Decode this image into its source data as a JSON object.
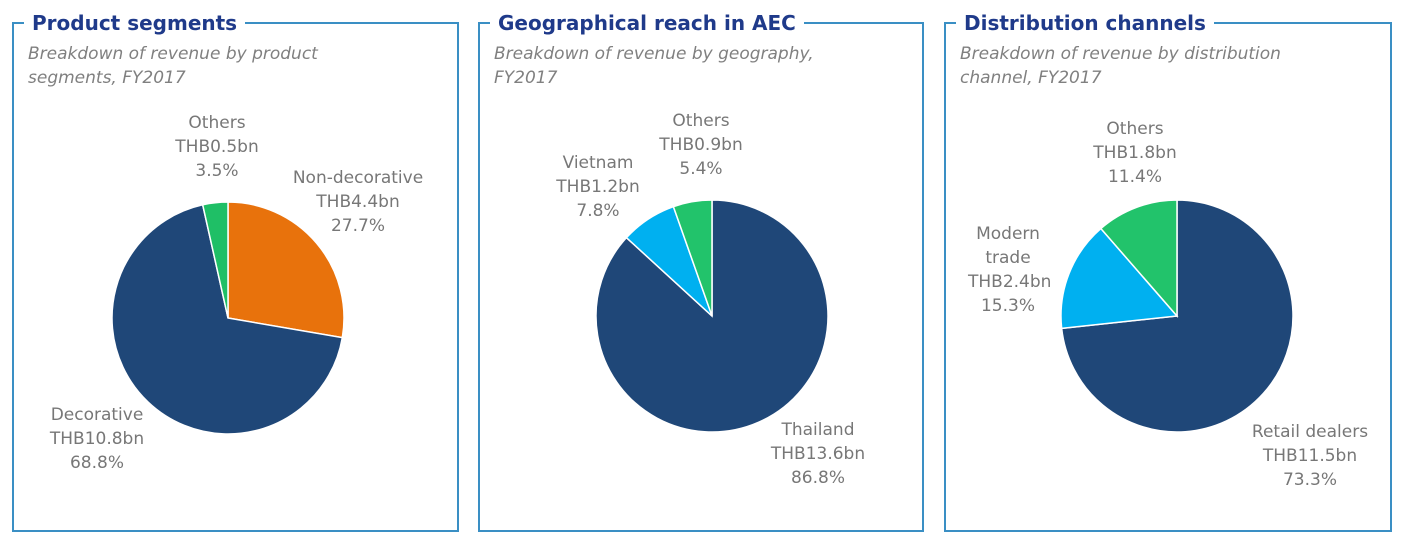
{
  "chart_data": [
    {
      "type": "pie",
      "title": "Product segments",
      "subtitle": "Breakdown of revenue by product segments, FY2017",
      "categories": [
        "Non-decorative",
        "Decorative",
        "Others"
      ],
      "values": [
        27.7,
        68.8,
        3.5
      ],
      "value_labels": [
        "27.7%",
        "68.8%",
        "3.5%"
      ],
      "amounts": [
        4.4,
        10.8,
        0.5
      ],
      "amount_labels": [
        "THB4.4bn",
        "THB10.8bn",
        "THB0.5bn"
      ],
      "colors": [
        "#e8720c",
        "#1f4778",
        "#1fbf66"
      ]
    },
    {
      "type": "pie",
      "title": "Geographical reach in AEC",
      "subtitle": "Breakdown of revenue by geography, FY2017",
      "categories": [
        "Thailand",
        "Vietnam",
        "Others"
      ],
      "values": [
        86.8,
        7.8,
        5.4
      ],
      "value_labels": [
        "86.8%",
        "7.8%",
        "5.4%"
      ],
      "amounts": [
        13.6,
        1.2,
        0.9
      ],
      "amount_labels": [
        "THB13.6bn",
        "THB1.2bn",
        "THB0.9bn"
      ],
      "colors": [
        "#1f4778",
        "#00b0f0",
        "#22c36b"
      ]
    },
    {
      "type": "pie",
      "title": "Distribution channels",
      "subtitle": "Breakdown of revenue by distribution channel, FY2017",
      "categories": [
        "Retail dealers",
        "Modern trade",
        "Others"
      ],
      "values": [
        73.3,
        15.3,
        11.4
      ],
      "value_labels": [
        "73.3%",
        "15.3%",
        "11.4%"
      ],
      "amounts": [
        11.5,
        2.4,
        1.8
      ],
      "amount_labels": [
        "THB11.5bn",
        "THB2.4bn",
        "THB1.8bn"
      ],
      "colors": [
        "#1f4778",
        "#00b0f0",
        "#22c36b"
      ]
    }
  ]
}
